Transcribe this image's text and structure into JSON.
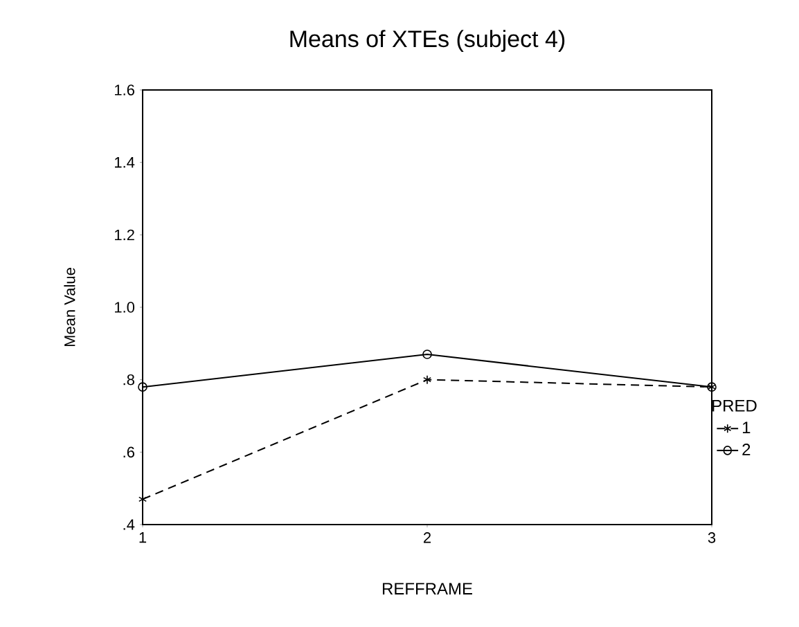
{
  "chart_data": {
    "type": "line",
    "title": "Means of XTEs (subject 4)",
    "xlabel": "REFFRAME",
    "ylabel": "Mean Value",
    "legend_title": "PRED",
    "legend": "right",
    "x": [
      1,
      2,
      3
    ],
    "xlim": [
      1,
      3
    ],
    "xticks": [
      1,
      2,
      3
    ],
    "ylim": [
      0.4,
      1.6
    ],
    "yticks": [
      {
        "value": 0.4,
        "label": ".4"
      },
      {
        "value": 0.6,
        "label": ".6"
      },
      {
        "value": 0.8,
        "label": ".8"
      },
      {
        "value": 1.0,
        "label": "1.0"
      },
      1.2,
      1.4,
      1.6
    ],
    "series": [
      {
        "name": "1",
        "color": "#000000",
        "marker": "cross",
        "line_style": "dashed",
        "values": [
          0.47,
          0.8,
          0.78
        ]
      },
      {
        "name": "2",
        "color": "#000000",
        "marker": "circle",
        "line_style": "solid",
        "values": [
          0.78,
          0.87,
          0.78
        ]
      }
    ]
  }
}
